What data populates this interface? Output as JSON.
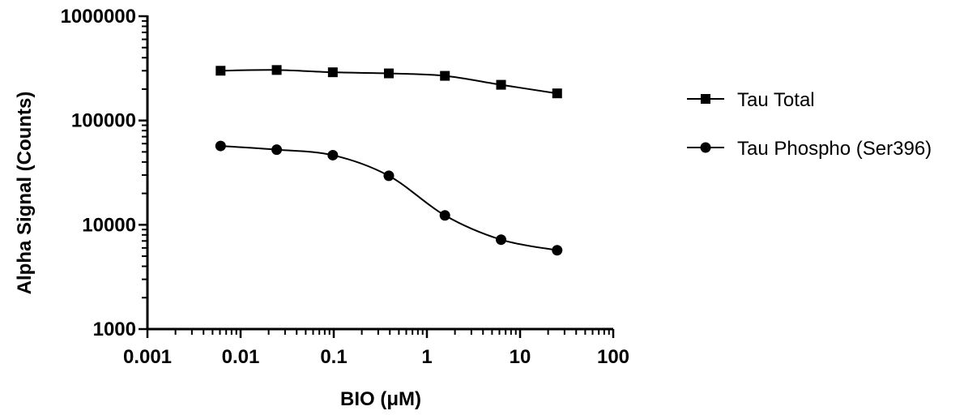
{
  "chart_data": {
    "type": "line",
    "xlabel": "BIO (μM)",
    "ylabel": "Alpha Signal (Counts)",
    "x_scale": "log",
    "y_scale": "log",
    "xlim": [
      0.001,
      100
    ],
    "ylim": [
      1000,
      1000000
    ],
    "x_ticks": [
      {
        "value": 0.001,
        "label": "0.001"
      },
      {
        "value": 0.01,
        "label": "0.01"
      },
      {
        "value": 0.1,
        "label": "0.1"
      },
      {
        "value": 1,
        "label": "1"
      },
      {
        "value": 10,
        "label": "10"
      },
      {
        "value": 100,
        "label": "100"
      }
    ],
    "y_ticks": [
      {
        "value": 1000,
        "label": "1000"
      },
      {
        "value": 10000,
        "label": "10000"
      },
      {
        "value": 100000,
        "label": "100000"
      },
      {
        "value": 1000000,
        "label": "1000000"
      }
    ],
    "grid": false,
    "legend_position": "right",
    "series": [
      {
        "name": "Tau Total",
        "marker": "square",
        "color": "#000000",
        "x": [
          0.0061,
          0.0244,
          0.0977,
          0.39,
          1.56,
          6.25,
          25
        ],
        "y": [
          300000,
          305000,
          290000,
          283000,
          268000,
          220000,
          182000
        ]
      },
      {
        "name": "Tau Phospho (Ser396)",
        "marker": "circle",
        "color": "#000000",
        "x": [
          0.0061,
          0.0244,
          0.0977,
          0.39,
          1.56,
          6.25,
          25
        ],
        "y": [
          57000,
          52500,
          46500,
          29500,
          12300,
          7200,
          5700
        ]
      }
    ]
  }
}
